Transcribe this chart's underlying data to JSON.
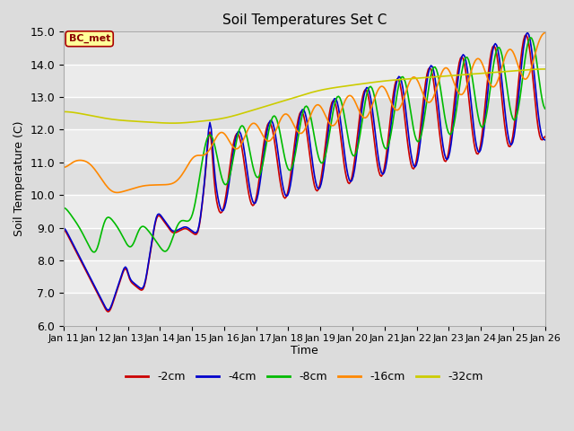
{
  "title": "Soil Temperatures Set C",
  "xlabel": "Time",
  "ylabel": "Soil Temperature (C)",
  "ylim": [
    6.0,
    15.0
  ],
  "yticks": [
    6.0,
    7.0,
    8.0,
    9.0,
    10.0,
    11.0,
    12.0,
    13.0,
    14.0,
    15.0
  ],
  "xtick_labels": [
    "Jan 11",
    "Jan 12",
    "Jan 13",
    "Jan 14",
    "Jan 15",
    "Jan 16",
    "Jan 17",
    "Jan 18",
    "Jan 19",
    "Jan 20",
    "Jan 21",
    "Jan 22",
    "Jan 23",
    "Jan 24",
    "Jan 25",
    "Jan 26"
  ],
  "legend_labels": [
    "-2cm",
    "-4cm",
    "-8cm",
    "-16cm",
    "-32cm"
  ],
  "line_colors": [
    "#cc0000",
    "#0000cc",
    "#00bb00",
    "#ff8800",
    "#cccc00"
  ],
  "bg_color": "#dcdcdc",
  "plot_bg_color": "#ebebeb",
  "annotation_text": "BC_met",
  "annotation_bg": "#ffff99",
  "annotation_border": "#aa0000",
  "grid_color": "#ffffff"
}
